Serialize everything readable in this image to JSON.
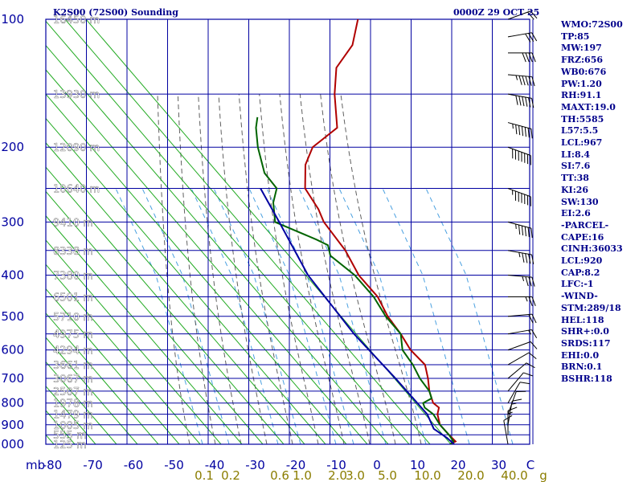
{
  "header": {
    "station": "K2S00 (72S00) Sounding",
    "time": "0000Z 29 OCT 25"
  },
  "stats": [
    "WMO:72S00",
    "TP:85",
    "MW:197",
    "FRZ:656",
    "WB0:676",
    "PW:1.20",
    "RH:91.1",
    "MAXT:19.0",
    "TH:5585",
    "L57:5.5",
    "LCL:967",
    "LI:8.4",
    "SI:7.6",
    "TT:38",
    "KI:26",
    "SW:130",
    "EI:2.6",
    "-PARCEL-",
    "CAPE:16",
    "CINH:36033",
    "LCL:920",
    "CAP:8.2",
    "LFC:-1",
    "-WIND-",
    "STM:289/18",
    "HEL:118",
    "SHR+:0.0",
    "SRDS:117",
    "EHI:0.0",
    "BRN:0.1",
    "BSHR:118"
  ],
  "colors": {
    "grid": "#0000a0",
    "dry_adiabat": "#22aa22",
    "moist_adiabat": "#606060",
    "mixing_ratio": "#4aa0e0",
    "temperature": "#b00000",
    "dewpoint": "#006400",
    "parcel": "#0000a0",
    "wind": "#000000",
    "mixing_label": "#8b7d00",
    "height_label": "#ffffff"
  },
  "chart_data": {
    "type": "skew-t",
    "pressure_axis": {
      "unit": "mb",
      "ticks": [
        100,
        200,
        300,
        400,
        500,
        600,
        700,
        800,
        900,
        1000
      ],
      "range": [
        1000,
        100
      ]
    },
    "temperature_axis": {
      "unit_label": "mb",
      "ticks": [
        -80,
        -70,
        -60,
        -50,
        -40,
        -30,
        -20,
        -10,
        0,
        10,
        20,
        30
      ],
      "end_label": "C",
      "range": [
        -80,
        30
      ]
    },
    "mixing_ratio_labels": [
      "0.1",
      "0.2",
      "0.6",
      "1.0",
      "2.0",
      "3.0",
      "5.0",
      "10.0",
      "20.0",
      "40.0"
    ],
    "mixing_ratio_unit": "g",
    "heights": [
      {
        "p": 100,
        "label": "16450 m"
      },
      {
        "p": 150,
        "label": "13930 m"
      },
      {
        "p": 200,
        "label": "12090 m"
      },
      {
        "p": 250,
        "label": "10640 m"
      },
      {
        "p": 300,
        "label": "9410 m"
      },
      {
        "p": 350,
        "label": "8338 m"
      },
      {
        "p": 400,
        "label": "7380 m"
      },
      {
        "p": 450,
        "label": "6501 m"
      },
      {
        "p": 500,
        "label": "5710 m"
      },
      {
        "p": 550,
        "label": "4975 m"
      },
      {
        "p": 600,
        "label": "4294 m"
      },
      {
        "p": 650,
        "label": "3661 m"
      },
      {
        "p": 700,
        "label": "3067 m"
      },
      {
        "p": 750,
        "label": "2507 m"
      },
      {
        "p": 800,
        "label": "1978 m"
      },
      {
        "p": 850,
        "label": "1479 m"
      },
      {
        "p": 900,
        "label": "1005 m"
      },
      {
        "p": 950,
        "label": "555 m"
      },
      {
        "p": 1000,
        "label": "125 m"
      }
    ],
    "series": [
      {
        "name": "temperature",
        "points": [
          [
            1000,
            18
          ],
          [
            985,
            19
          ],
          [
            950,
            16.5
          ],
          [
            900,
            13
          ],
          [
            850,
            11
          ],
          [
            820,
            10.5
          ],
          [
            800,
            8.5
          ],
          [
            780,
            7.5
          ],
          [
            750,
            6
          ],
          [
            700,
            4
          ],
          [
            650,
            1.5
          ],
          [
            600,
            -4
          ],
          [
            550,
            -8.5
          ],
          [
            500,
            -14
          ],
          [
            450,
            -19
          ],
          [
            400,
            -26.5
          ],
          [
            350,
            -33
          ],
          [
            300,
            -42
          ],
          [
            280,
            -45
          ],
          [
            250,
            -51
          ],
          [
            220,
            -54
          ],
          [
            200,
            -54.5
          ],
          [
            180,
            -51
          ],
          [
            150,
            -56
          ],
          [
            130,
            -59
          ],
          [
            115,
            -58
          ],
          [
            100,
            -60
          ]
        ]
      },
      {
        "name": "dewpoint",
        "points": [
          [
            1000,
            18
          ],
          [
            985,
            18.5
          ],
          [
            950,
            16.5
          ],
          [
            900,
            13
          ],
          [
            850,
            10
          ],
          [
            820,
            7
          ],
          [
            800,
            6
          ],
          [
            780,
            7.5
          ],
          [
            750,
            6
          ],
          [
            700,
            2
          ],
          [
            650,
            -1.5
          ],
          [
            600,
            -6
          ],
          [
            550,
            -8.5
          ],
          [
            500,
            -14.5
          ],
          [
            450,
            -20
          ],
          [
            400,
            -27.5
          ],
          [
            360,
            -36
          ],
          [
            340,
            -38
          ],
          [
            330,
            -41.5
          ],
          [
            300,
            -54
          ],
          [
            270,
            -57
          ],
          [
            250,
            -58
          ],
          [
            230,
            -63
          ],
          [
            200,
            -68
          ],
          [
            180,
            -71
          ],
          [
            170,
            -72
          ]
        ]
      },
      {
        "name": "parcel",
        "points": [
          [
            1000,
            19
          ],
          [
            967,
            16.5
          ],
          [
            920,
            12
          ],
          [
            850,
            8.5
          ],
          [
            700,
            -4
          ],
          [
            550,
            -20
          ],
          [
            400,
            -39
          ],
          [
            300,
            -53
          ],
          [
            250,
            -62
          ]
        ]
      }
    ],
    "wind_barbs": [
      {
        "p": 100,
        "dir": 250,
        "spd": 20
      },
      {
        "p": 110,
        "dir": 260,
        "spd": 30
      },
      {
        "p": 120,
        "dir": 270,
        "spd": 40
      },
      {
        "p": 135,
        "dir": 275,
        "spd": 55
      },
      {
        "p": 150,
        "dir": 280,
        "spd": 60
      },
      {
        "p": 175,
        "dir": 285,
        "spd": 65
      },
      {
        "p": 200,
        "dir": 290,
        "spd": 70
      },
      {
        "p": 250,
        "dir": 290,
        "spd": 65
      },
      {
        "p": 300,
        "dir": 285,
        "spd": 55
      },
      {
        "p": 350,
        "dir": 280,
        "spd": 45
      },
      {
        "p": 400,
        "dir": 275,
        "spd": 35
      },
      {
        "p": 450,
        "dir": 270,
        "spd": 25
      },
      {
        "p": 500,
        "dir": 265,
        "spd": 20
      },
      {
        "p": 550,
        "dir": 260,
        "spd": 15
      },
      {
        "p": 600,
        "dir": 250,
        "spd": 10
      },
      {
        "p": 650,
        "dir": 240,
        "spd": 10
      },
      {
        "p": 700,
        "dir": 230,
        "spd": 10
      },
      {
        "p": 750,
        "dir": 220,
        "spd": 10
      },
      {
        "p": 800,
        "dir": 210,
        "spd": 10
      },
      {
        "p": 850,
        "dir": 200,
        "spd": 10
      },
      {
        "p": 900,
        "dir": 190,
        "spd": 15
      },
      {
        "p": 950,
        "dir": 180,
        "spd": 15
      },
      {
        "p": 1000,
        "dir": 170,
        "spd": 10
      }
    ]
  }
}
